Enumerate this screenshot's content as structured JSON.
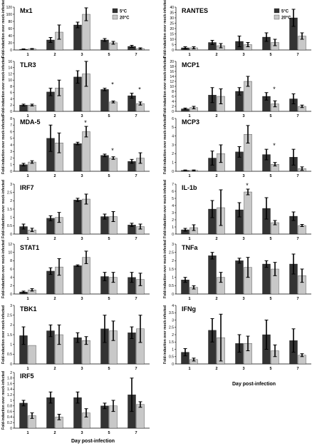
{
  "figure": {
    "ylabel": "Fold-induction over mock-infected",
    "xlabel": "Day post-infection",
    "categories": [
      "1",
      "2",
      "3",
      "5",
      "7"
    ],
    "legend": [
      "5°C",
      "20°C"
    ],
    "colors": {
      "s5": "#333333",
      "s20": "#c8c8c8"
    }
  },
  "chart_data": [
    {
      "type": "bar",
      "title": "Mx1",
      "categories": [
        "1",
        "2",
        "3",
        "5",
        "7"
      ],
      "ylim": [
        0,
        120
      ],
      "yticks": [
        "0",
        "20",
        "40",
        "60",
        "80",
        "100",
        "120"
      ],
      "legend": "top-right",
      "series": [
        {
          "name": "5°C",
          "values": [
            2,
            28,
            70,
            28,
            10
          ],
          "err": [
            1,
            7,
            8,
            4,
            3
          ]
        },
        {
          "name": "20°C",
          "values": [
            3,
            50,
            100,
            20,
            4
          ],
          "err": [
            1,
            20,
            18,
            4,
            2
          ]
        }
      ]
    },
    {
      "type": "bar",
      "title": "RANTES",
      "categories": [
        "1",
        "2",
        "3",
        "5",
        "7"
      ],
      "ylim": [
        0,
        40
      ],
      "yticks": [
        "0",
        "5",
        "10",
        "15",
        "20",
        "25",
        "30",
        "35",
        "40"
      ],
      "legend": "top-right",
      "series": [
        {
          "name": "5°C",
          "values": [
            2,
            7,
            8,
            12,
            30
          ],
          "err": [
            1,
            2,
            5,
            4,
            8
          ]
        },
        {
          "name": "20°C",
          "values": [
            2,
            4,
            5,
            7,
            13
          ],
          "err": [
            1,
            2,
            2,
            3,
            3
          ]
        }
      ]
    },
    {
      "type": "bar",
      "title": "TLR3",
      "categories": [
        "1",
        "2",
        "3",
        "5",
        "7"
      ],
      "ylim": [
        0,
        16
      ],
      "yticks": [
        "0",
        "2",
        "4",
        "6",
        "8",
        "10",
        "12",
        "14",
        "16"
      ],
      "annotations": [
        "*",
        "*"
      ],
      "series": [
        {
          "name": "5°C",
          "values": [
            2,
            6.2,
            11,
            7,
            5
          ],
          "err": [
            0.3,
            1.2,
            2,
            0.4,
            0.8
          ]
        },
        {
          "name": "20°C",
          "values": [
            2,
            7.5,
            12,
            3,
            2.5
          ],
          "err": [
            0.3,
            2.5,
            4,
            0.3,
            0.5
          ]
        }
      ]
    },
    {
      "type": "bar",
      "title": "MCP1",
      "categories": [
        "1",
        "2",
        "3",
        "5",
        "7"
      ],
      "ylim": [
        0,
        20
      ],
      "yticks": [
        "0",
        "2",
        "4",
        "6",
        "8",
        "10",
        "12",
        "14",
        "16",
        "18",
        "20"
      ],
      "annotations": [
        "*"
      ],
      "series": [
        {
          "name": "5°C",
          "values": [
            1,
            6.5,
            8,
            6,
            5
          ],
          "err": [
            0.3,
            3,
            1.5,
            1.5,
            2
          ]
        },
        {
          "name": "20°C",
          "values": [
            1.5,
            6,
            12,
            3,
            2
          ],
          "err": [
            0.5,
            3,
            2,
            1.2,
            0.5
          ]
        }
      ]
    },
    {
      "type": "bar",
      "title": "MDA-5",
      "categories": [
        "1",
        "2",
        "3",
        "5",
        "7"
      ],
      "ylim": [
        0,
        8
      ],
      "yticks": [
        "0",
        "1",
        "2",
        "3",
        "4",
        "5",
        "6",
        "7",
        "8"
      ],
      "annotations": [
        "*",
        "*"
      ],
      "series": [
        {
          "name": "5°C",
          "values": [
            1,
            5,
            4.2,
            2.4,
            1.5
          ],
          "err": [
            0.2,
            2,
            0.2,
            0.2,
            0.3
          ]
        },
        {
          "name": "20°C",
          "values": [
            1.4,
            4.3,
            6,
            2,
            2
          ],
          "err": [
            0.2,
            1.5,
            0.8,
            0.2,
            0.8
          ]
        }
      ]
    },
    {
      "type": "bar",
      "title": "MCP3",
      "categories": [
        "1",
        "2",
        "3",
        "5",
        "7"
      ],
      "ylim": [
        0,
        6
      ],
      "yticks": [
        "0",
        "1",
        "2",
        "3",
        "4",
        "5",
        "6"
      ],
      "annotations": [
        "*"
      ],
      "series": [
        {
          "name": "5°C",
          "values": [
            0.1,
            1.5,
            2.2,
            1.9,
            1.6
          ],
          "err": [
            0.05,
            0.8,
            0.6,
            0.6,
            0.9
          ]
        },
        {
          "name": "20°C",
          "values": [
            0.1,
            2,
            4.2,
            0.8,
            0.3
          ],
          "err": [
            0.05,
            1,
            1,
            0.2,
            0.2
          ]
        }
      ]
    },
    {
      "type": "bar",
      "title": "IRF7",
      "categories": [
        "1",
        "2",
        "3",
        "5",
        "7"
      ],
      "ylim": [
        0,
        3
      ],
      "yticks": [
        "0",
        "0.5",
        "1",
        "1.5",
        "2",
        "2.5",
        "3"
      ],
      "series": [
        {
          "name": "5°C",
          "values": [
            0.45,
            0.95,
            2.05,
            1.05,
            0.55
          ],
          "err": [
            0.15,
            0.15,
            0.1,
            0.15,
            0.1
          ]
        },
        {
          "name": "20°C",
          "values": [
            0.25,
            1,
            2.1,
            1.05,
            0.45
          ],
          "err": [
            0.1,
            0.3,
            0.3,
            0.3,
            0.15
          ]
        }
      ]
    },
    {
      "type": "bar",
      "title": "IL-1b",
      "categories": [
        "1",
        "2",
        "3",
        "5",
        "7"
      ],
      "ylim": [
        0,
        7
      ],
      "yticks": [
        "0",
        "1",
        "2",
        "3",
        "4",
        "5",
        "6",
        "7"
      ],
      "annotations": [
        "*"
      ],
      "series": [
        {
          "name": "5°C",
          "values": [
            0.6,
            3.5,
            3.4,
            3.6,
            2.5
          ],
          "err": [
            0.2,
            1.2,
            1,
            1.5,
            0.6
          ]
        },
        {
          "name": "20°C",
          "values": [
            0.9,
            3.7,
            5.9,
            1.6,
            1.2
          ],
          "err": [
            0.4,
            2.5,
            0.4,
            0.3,
            0.15
          ]
        }
      ]
    },
    {
      "type": "bar",
      "title": "STAT1",
      "categories": [
        "1",
        "2",
        "3",
        "5",
        "7"
      ],
      "ylim": [
        0,
        12
      ],
      "yticks": [
        "0",
        "2",
        "4",
        "6",
        "8",
        "10",
        "12"
      ],
      "series": [
        {
          "name": "5°C",
          "values": [
            0.5,
            5.5,
            6.8,
            4.2,
            4
          ],
          "err": [
            0.2,
            0.8,
            0.2,
            1,
            1.2
          ]
        },
        {
          "name": "20°C",
          "values": [
            1,
            6.5,
            8.8,
            4,
            3.5
          ],
          "err": [
            0.3,
            2,
            1.5,
            1.2,
            1.5
          ]
        }
      ]
    },
    {
      "type": "bar",
      "title": "TNFa",
      "categories": [
        "1",
        "2",
        "3",
        "5",
        "7"
      ],
      "ylim": [
        0,
        3
      ],
      "yticks": [
        "0",
        "0.5",
        "1",
        "1.5",
        "2",
        "2.5",
        "3"
      ],
      "series": [
        {
          "name": "5°C",
          "values": [
            0.85,
            2.3,
            2,
            1.8,
            1.8
          ],
          "err": [
            0.15,
            0.2,
            0.15,
            0.2,
            0.6
          ]
        },
        {
          "name": "20°C",
          "values": [
            0.4,
            1,
            1.6,
            1.5,
            1.1
          ],
          "err": [
            0.1,
            0.3,
            0.6,
            0.4,
            0.4
          ]
        }
      ]
    },
    {
      "type": "bar",
      "title": "TBK1",
      "categories": [
        "1",
        "2",
        "3",
        "5",
        "7"
      ],
      "ylim": [
        0,
        3
      ],
      "yticks": [
        "0",
        "0.5",
        "1",
        "1.5",
        "2",
        "2.5",
        "3"
      ],
      "series": [
        {
          "name": "5°C",
          "values": [
            1.45,
            1.7,
            1.35,
            1.8,
            1.6
          ],
          "err": [
            0.45,
            0.3,
            0.25,
            0.7,
            0.3
          ]
        },
        {
          "name": "20°C",
          "values": [
            0.95,
            1.5,
            1.2,
            1.7,
            1.8
          ],
          "err": [
            0,
            0.5,
            0.2,
            0.5,
            0.7
          ]
        }
      ]
    },
    {
      "type": "bar",
      "title": "IFNg",
      "categories": [
        "1",
        "2",
        "3",
        "5",
        "7"
      ],
      "ylim": [
        0,
        4
      ],
      "yticks": [
        "0",
        "0.5",
        "1",
        "1.5",
        "2",
        "2.5",
        "3",
        "3.5",
        "4"
      ],
      "series": [
        {
          "name": "5°C",
          "values": [
            0.8,
            2.3,
            1.4,
            2,
            1.6
          ],
          "err": [
            0.25,
            0.8,
            0.6,
            1,
            0.8
          ]
        },
        {
          "name": "20°C",
          "values": [
            0.3,
            1.8,
            1.4,
            0.9,
            0.6
          ],
          "err": [
            0.1,
            1.6,
            0.5,
            0.4,
            0.1
          ]
        }
      ]
    },
    {
      "type": "bar",
      "title": "IRF5",
      "categories": [
        "1",
        "2",
        "3",
        "5",
        "7"
      ],
      "ylim": [
        0,
        2
      ],
      "yticks": [
        "0",
        "0.2",
        "0.4",
        "0.6",
        "0.8",
        "1",
        "1.2",
        "1.4",
        "1.6",
        "1.8",
        "2"
      ],
      "series": [
        {
          "name": "5°C",
          "values": [
            0.9,
            1.1,
            1.1,
            0.8,
            1.2
          ],
          "err": [
            0.1,
            0.2,
            0.2,
            0.1,
            0.6
          ]
        },
        {
          "name": "20°C",
          "values": [
            0.45,
            0.4,
            0.55,
            0.8,
            0.85
          ],
          "err": [
            0.1,
            0.1,
            0.15,
            0.2,
            0.1
          ]
        }
      ]
    }
  ]
}
